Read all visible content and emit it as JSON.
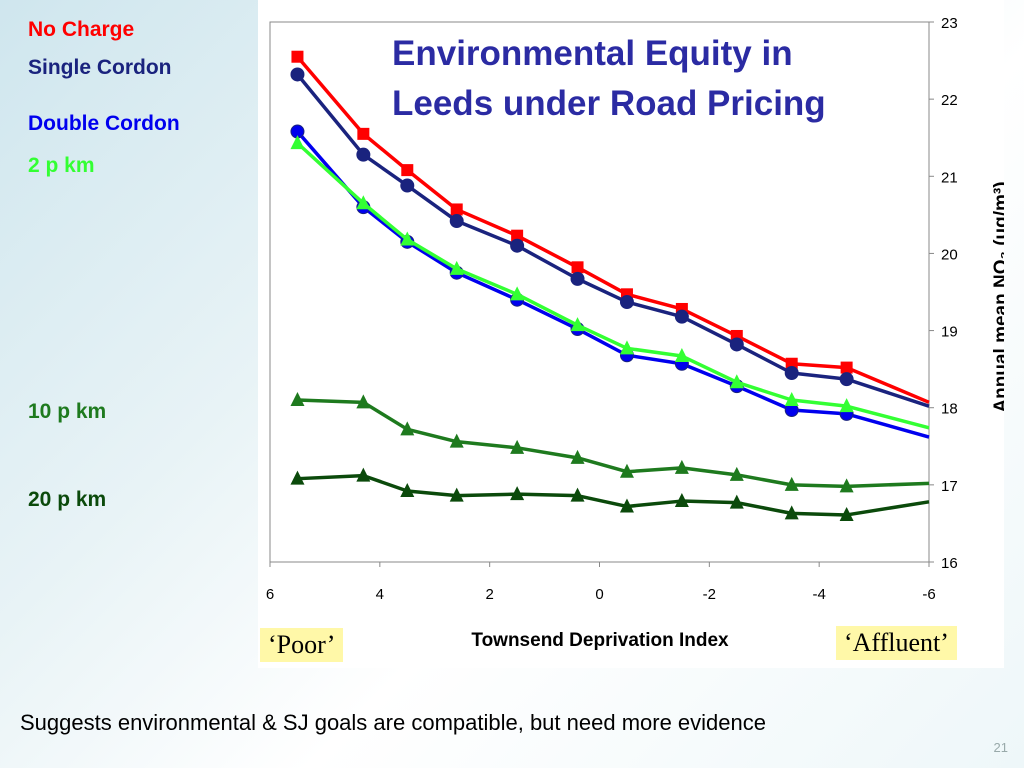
{
  "legend": {
    "no_charge": "No Charge",
    "single_cordon": "Single Cordon",
    "double_cordon": "Double Cordon",
    "p2": "2 p km",
    "p10": "10 p km",
    "p20": "20 p km"
  },
  "tags": {
    "poor": "‘Poor’",
    "affluent": "‘Affluent’"
  },
  "footer": "Suggests environmental & SJ goals are compatible, but need more evidence",
  "page_number": "21",
  "chart_data": {
    "type": "line",
    "title": "Environmental Equity in Leeds under Road Pricing",
    "title_lines": [
      "Environmental Equity in",
      "Leeds under Road Pricing"
    ],
    "xlabel": "Townsend Deprivation Index",
    "ylabel": "Annual mean NO₂ (ug/m³)",
    "xlim": [
      6,
      -6
    ],
    "ylim": [
      16,
      23
    ],
    "x_ticks": [
      "6",
      "4",
      "2",
      "0",
      "-2",
      "-4",
      "-6"
    ],
    "y_ticks": [
      "16",
      "17",
      "18",
      "19",
      "20",
      "21",
      "22",
      "23"
    ],
    "x": [
      5.5,
      4.3,
      3.5,
      2.6,
      1.5,
      0.4,
      -0.5,
      -1.5,
      -2.5,
      -3.5,
      -4.5,
      -6
    ],
    "series": [
      {
        "name": "No Charge",
        "color": "#ff0000",
        "marker": "square",
        "values": [
          22.55,
          21.55,
          21.08,
          20.57,
          20.23,
          19.82,
          19.47,
          19.28,
          18.93,
          18.57,
          18.52,
          18.07
        ]
      },
      {
        "name": "Single Cordon",
        "color": "#1a237e",
        "marker": "circle",
        "values": [
          22.32,
          21.28,
          20.88,
          20.42,
          20.1,
          19.67,
          19.37,
          19.18,
          18.82,
          18.45,
          18.37,
          18.02
        ]
      },
      {
        "name": "Double Cordon",
        "color": "#0000ee",
        "marker": "circle",
        "values": [
          21.58,
          20.6,
          20.15,
          19.75,
          19.4,
          19.02,
          18.68,
          18.57,
          18.28,
          17.97,
          17.92,
          17.62
        ]
      },
      {
        "name": "2 p km",
        "color": "#33ff33",
        "marker": "triangle",
        "values": [
          21.43,
          20.65,
          20.18,
          19.8,
          19.47,
          19.07,
          18.77,
          18.67,
          18.33,
          18.1,
          18.02,
          17.74
        ]
      },
      {
        "name": "10 p km",
        "color": "#1e7a1e",
        "marker": "triangle",
        "values": [
          18.1,
          18.07,
          17.72,
          17.56,
          17.48,
          17.35,
          17.17,
          17.22,
          17.13,
          17.0,
          16.98,
          17.02
        ]
      },
      {
        "name": "20 p km",
        "color": "#0b4a0b",
        "marker": "triangle",
        "values": [
          17.08,
          17.12,
          16.92,
          16.86,
          16.88,
          16.86,
          16.72,
          16.79,
          16.77,
          16.63,
          16.61,
          16.78
        ]
      }
    ],
    "grid": false,
    "legend_position": "left"
  }
}
